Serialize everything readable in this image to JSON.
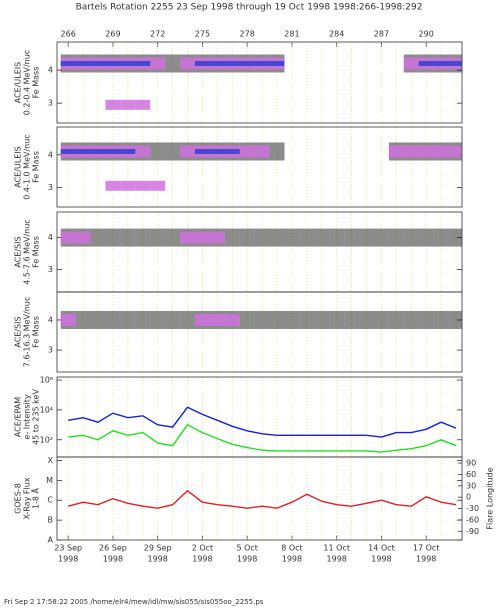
{
  "title": "Bartels Rotation 2255    23 Sep 1998 through 19 Oct 1998    1998:266-1998:292",
  "footer": "Fri Sep  2 17:58:22 2005   /home/elr4/mew/idl/mw/sis055/sis055oo_2255.ps",
  "x_axis": {
    "xlim": [
      265.25,
      292.4
    ],
    "top_ticks": [
      266,
      269,
      272,
      275,
      278,
      281,
      284,
      287,
      290
    ],
    "bottom_ticks": [
      {
        "value": 266,
        "label": "23 Sep",
        "year": "1998"
      },
      {
        "value": 269,
        "label": "26 Sep",
        "year": "1998"
      },
      {
        "value": 272,
        "label": "29 Sep",
        "year": "1998"
      },
      {
        "value": 275,
        "label": "2 Oct",
        "year": "1998"
      },
      {
        "value": 278,
        "label": "5 Oct",
        "year": "1998"
      },
      {
        "value": 281,
        "label": "8 Oct",
        "year": "1998"
      },
      {
        "value": 284,
        "label": "11 Oct",
        "year": "1998"
      },
      {
        "value": 287,
        "label": "14 Oct",
        "year": "1998"
      },
      {
        "value": 290,
        "label": "17 Oct",
        "year": "1998"
      }
    ]
  },
  "chart_data": [
    {
      "type": "density",
      "ylabel": [
        "ACE/ULEIS",
        "0.2-0.4 MeV/nuc",
        "Fe Mass"
      ],
      "ylim": [
        2.4,
        4.85
      ],
      "yticks": [
        3,
        4
      ],
      "grid": true,
      "x": [
        266,
        267,
        268,
        269,
        270,
        271,
        272,
        273,
        274,
        275,
        276,
        277,
        278,
        279,
        280,
        281,
        282,
        283,
        284,
        285,
        286,
        287,
        288,
        289,
        290,
        291,
        292
      ],
      "series": [
        {
          "color": "#000000",
          "values": [
            4.2,
            4.2,
            4.2,
            4.2,
            4.2,
            4.2,
            4.2,
            4.2,
            4.2,
            4.2,
            4.2,
            4.2,
            4.2,
            4.2,
            4.2,
            null,
            null,
            null,
            null,
            null,
            null,
            null,
            null,
            4.2,
            4.2,
            4.2,
            4.2
          ]
        },
        {
          "color": "#d070e0",
          "values": [
            4.2,
            4.2,
            4.2,
            4.2,
            4.2,
            4.2,
            4.2,
            null,
            4.2,
            4.2,
            4.2,
            4.2,
            4.2,
            4.2,
            4.2,
            null,
            null,
            null,
            null,
            null,
            null,
            null,
            null,
            4.2,
            4.2,
            4.2,
            4.2
          ]
        },
        {
          "color": "#3040d0",
          "values": [
            4.2,
            4.2,
            4.2,
            4.2,
            4.2,
            4.2,
            null,
            null,
            null,
            4.2,
            4.2,
            4.2,
            4.2,
            4.2,
            4.2,
            null,
            null,
            null,
            null,
            null,
            null,
            null,
            null,
            null,
            4.2,
            4.2,
            4.2
          ]
        },
        {
          "color": "#d070e0",
          "values": [
            null,
            null,
            null,
            2.95,
            2.95,
            2.95,
            null,
            null,
            null,
            null,
            null,
            null,
            null,
            null,
            null,
            null,
            null,
            null,
            null,
            null,
            null,
            null,
            null,
            null,
            null,
            null,
            null
          ]
        }
      ]
    },
    {
      "type": "density",
      "ylabel": [
        "ACE/ULEIS",
        "0.4-1.0 MeV/nuc",
        "Fe Mass"
      ],
      "ylim": [
        2.4,
        4.85
      ],
      "yticks": [
        3,
        4
      ],
      "grid": true,
      "x": [
        266,
        267,
        268,
        269,
        270,
        271,
        272,
        273,
        274,
        275,
        276,
        277,
        278,
        279,
        280,
        281,
        282,
        283,
        284,
        285,
        286,
        287,
        288,
        289,
        290,
        291,
        292
      ],
      "series": [
        {
          "color": "#000000",
          "values": [
            4.1,
            4.1,
            4.1,
            4.1,
            4.1,
            4.1,
            4.1,
            4.1,
            4.1,
            4.1,
            4.1,
            4.1,
            4.1,
            4.1,
            4.1,
            null,
            null,
            null,
            null,
            null,
            null,
            null,
            4.1,
            4.1,
            4.1,
            4.1,
            4.1
          ]
        },
        {
          "color": "#d070e0",
          "values": [
            4.1,
            4.1,
            4.1,
            4.1,
            4.1,
            4.1,
            null,
            null,
            4.1,
            4.1,
            4.1,
            4.1,
            4.1,
            4.1,
            null,
            null,
            null,
            null,
            null,
            null,
            null,
            null,
            4.1,
            4.1,
            4.1,
            4.1,
            4.1
          ]
        },
        {
          "color": "#3040d0",
          "values": [
            4.1,
            4.1,
            4.1,
            4.1,
            4.1,
            null,
            null,
            null,
            null,
            4.1,
            4.1,
            4.1,
            null,
            null,
            null,
            null,
            null,
            null,
            null,
            null,
            null,
            null,
            null,
            null,
            null,
            null,
            null
          ]
        },
        {
          "color": "#d070e0",
          "values": [
            null,
            null,
            null,
            3.05,
            3.05,
            3.05,
            3.05,
            null,
            null,
            null,
            null,
            null,
            null,
            null,
            null,
            null,
            null,
            null,
            null,
            null,
            null,
            null,
            null,
            null,
            null,
            null,
            null
          ]
        }
      ]
    },
    {
      "type": "density",
      "ylabel": [
        "ACE/SIS",
        "4.5-7.6 MeV/nuc",
        "Fe Mass"
      ],
      "ylim": [
        2.3,
        4.8
      ],
      "yticks": [
        3,
        4
      ],
      "grid": true,
      "x": [
        266,
        267,
        268,
        269,
        270,
        271,
        272,
        273,
        274,
        275,
        276,
        277,
        278,
        279,
        280,
        281,
        282,
        283,
        284,
        285,
        286,
        287,
        288,
        289,
        290,
        291,
        292
      ],
      "series": [
        {
          "color": "#000000",
          "values": [
            4.0,
            4.0,
            4.0,
            4.0,
            4.0,
            4.0,
            4.0,
            4.0,
            4.0,
            4.0,
            4.0,
            4.0,
            4.0,
            4.0,
            4.0,
            4.0,
            4.0,
            4.0,
            4.0,
            4.0,
            4.0,
            4.0,
            4.0,
            4.0,
            4.0,
            4.0,
            4.0
          ]
        },
        {
          "color": "#d070e0",
          "values": [
            4.0,
            4.0,
            null,
            null,
            null,
            null,
            null,
            null,
            4.0,
            4.0,
            4.0,
            null,
            null,
            null,
            null,
            null,
            null,
            null,
            null,
            null,
            null,
            null,
            null,
            null,
            null,
            null,
            null
          ]
        }
      ]
    },
    {
      "type": "density",
      "ylabel": [
        "ACE/SIS",
        "7.6-16.3 MeV/nuc",
        "Fe Mass"
      ],
      "ylim": [
        2.27,
        4.93
      ],
      "yticks": [
        3,
        4
      ],
      "grid": true,
      "x": [
        266,
        267,
        268,
        269,
        270,
        271,
        272,
        273,
        274,
        275,
        276,
        277,
        278,
        279,
        280,
        281,
        282,
        283,
        284,
        285,
        286,
        287,
        288,
        289,
        290,
        291,
        292
      ],
      "series": [
        {
          "color": "#000000",
          "values": [
            4.0,
            4.0,
            4.0,
            4.0,
            4.0,
            4.0,
            4.0,
            4.0,
            4.0,
            4.0,
            4.0,
            4.0,
            4.0,
            4.0,
            4.0,
            4.0,
            4.0,
            4.0,
            4.0,
            4.0,
            4.0,
            4.0,
            4.0,
            4.0,
            4.0,
            4.0,
            4.0
          ]
        },
        {
          "color": "#d070e0",
          "values": [
            4.0,
            null,
            null,
            null,
            null,
            null,
            null,
            null,
            null,
            4.0,
            4.0,
            4.0,
            null,
            null,
            null,
            null,
            null,
            null,
            null,
            null,
            null,
            null,
            null,
            null,
            null,
            null,
            null
          ]
        }
      ]
    },
    {
      "type": "line",
      "ylabel": [
        "ACE/EPAM",
        "e- Intensity",
        "45 to 235 keV"
      ],
      "log": true,
      "ylim": [
        7,
        1600000
      ],
      "yticks": [
        {
          "value": 100,
          "label": "10²"
        },
        {
          "value": 10000,
          "label": "10⁴"
        },
        {
          "value": 1000000,
          "label": "10⁶"
        }
      ],
      "grid": true,
      "x": [
        266,
        267,
        268,
        269,
        270,
        271,
        272,
        273,
        274,
        275,
        276,
        277,
        278,
        279,
        280,
        281,
        282,
        283,
        284,
        285,
        286,
        287,
        288,
        289,
        290,
        291,
        292
      ],
      "series": [
        {
          "color": "#1020e0",
          "values": [
            2000,
            3000,
            1500,
            6000,
            3000,
            4000,
            1000,
            700,
            15000,
            5000,
            2000,
            800,
            400,
            250,
            200,
            200,
            200,
            200,
            200,
            200,
            200,
            150,
            300,
            300,
            500,
            1500,
            600
          ]
        },
        {
          "color": "#20e020",
          "values": [
            150,
            200,
            100,
            400,
            200,
            300,
            60,
            40,
            1000,
            300,
            120,
            50,
            30,
            20,
            18,
            18,
            18,
            18,
            18,
            18,
            18,
            15,
            20,
            25,
            40,
            100,
            40
          ]
        }
      ]
    },
    {
      "type": "line",
      "ylabel": [
        "GOES-8",
        "X-Ray Flux",
        "1-8 Å"
      ],
      "y2label": "Flare Longitude",
      "log": true,
      "ylim": [
        1e-08,
        0.00015
      ],
      "yticks": [
        {
          "value": 1e-08,
          "label": "A"
        },
        {
          "value": 1e-07,
          "label": "B"
        },
        {
          "value": 1e-06,
          "label": "C"
        },
        {
          "value": 1e-05,
          "label": "M"
        },
        {
          "value": 0.0001,
          "label": "X"
        }
      ],
      "y2lim": [
        -113,
        106
      ],
      "y2ticks": [
        -90,
        -60,
        -30,
        0,
        30,
        60,
        90
      ],
      "grid": true,
      "x": [
        266,
        267,
        268,
        269,
        270,
        271,
        272,
        273,
        274,
        275,
        276,
        277,
        278,
        279,
        280,
        281,
        282,
        283,
        284,
        285,
        286,
        287,
        288,
        289,
        290,
        291,
        292
      ],
      "series": [
        {
          "color": "#e02020",
          "values": [
            5e-07,
            8e-07,
            6e-07,
            1.2e-06,
            7e-07,
            5e-07,
            4e-07,
            6e-07,
            3e-06,
            8e-07,
            6e-07,
            5e-07,
            4e-07,
            5e-07,
            4e-07,
            8e-07,
            2e-06,
            9e-07,
            6e-07,
            5e-07,
            7e-07,
            1e-06,
            6e-07,
            5e-07,
            1.5e-06,
            8e-07,
            6e-07
          ]
        }
      ]
    }
  ]
}
